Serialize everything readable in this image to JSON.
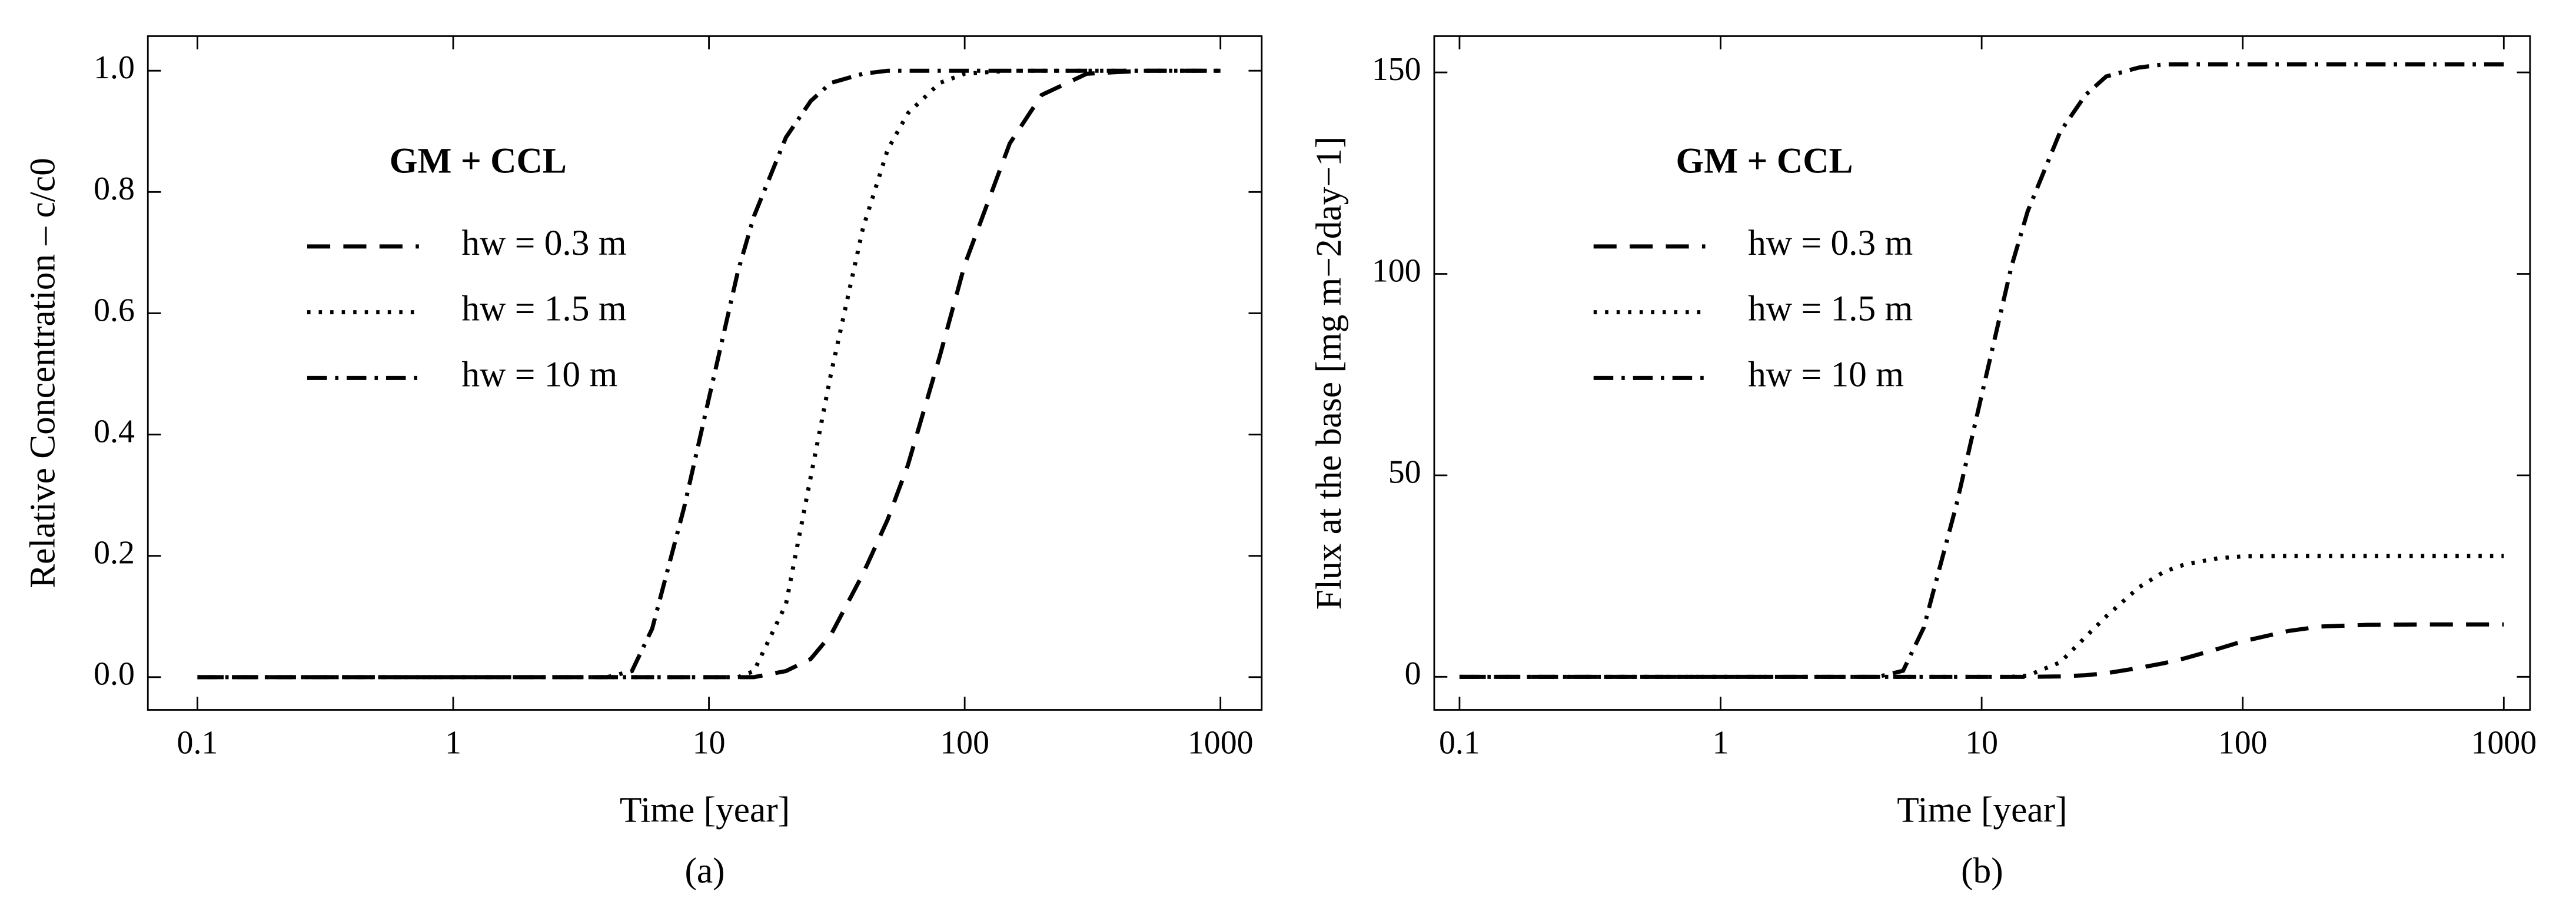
{
  "chart_data": [
    {
      "type": "line",
      "panel_label": "(a)",
      "xlabel": "Time [year]",
      "ylabel": "Relative Concentration – c/c0",
      "annotation": "GM + CCL",
      "log_x": true,
      "legend_position": "upper left",
      "xlim": [
        0.064,
        1450
      ],
      "xticks": [
        0.1,
        1,
        10,
        100,
        1000
      ],
      "ylim": [
        -0.054,
        1.057
      ],
      "yticks": [
        {
          "value": 0,
          "label": "0.0"
        },
        0.2,
        0.4,
        0.6,
        0.8,
        {
          "value": 1,
          "label": "1.0"
        }
      ],
      "x": [
        0.1,
        1,
        3,
        4,
        5,
        6,
        8,
        10,
        13,
        15,
        20,
        25,
        30,
        40,
        50,
        60,
        80,
        100,
        150,
        200,
        300,
        500,
        1000
      ],
      "series": [
        {
          "name": "hw = 0.3 m",
          "color": "#000000",
          "linestyle": "dashed",
          "values": [
            0,
            0,
            0,
            0,
            0,
            0,
            0,
            0,
            0,
            0,
            0.01,
            0.03,
            0.07,
            0.17,
            0.26,
            0.35,
            0.53,
            0.68,
            0.88,
            0.96,
            0.995,
            1,
            1
          ]
        },
        {
          "name": "hw = 1.5 m",
          "color": "#000000",
          "linestyle": "dotted",
          "values": [
            0,
            0,
            0,
            0,
            0,
            0,
            0,
            0,
            0,
            0.01,
            0.12,
            0.33,
            0.5,
            0.74,
            0.87,
            0.93,
            0.98,
            0.995,
            1,
            1,
            1,
            1,
            1
          ]
        },
        {
          "name": "hw = 10 m",
          "color": "#000000",
          "linestyle": "dashdot",
          "values": [
            0,
            0,
            0,
            0,
            0.01,
            0.08,
            0.28,
            0.46,
            0.67,
            0.76,
            0.89,
            0.95,
            0.98,
            0.995,
            1,
            1,
            1,
            1,
            1,
            1,
            1,
            1,
            1
          ]
        }
      ]
    },
    {
      "type": "line",
      "panel_label": "(b)",
      "xlabel": "Time [year]",
      "ylabel": "Flux at the base [mg m−2day−1]",
      "annotation": "GM + CCL",
      "log_x": true,
      "legend_position": "upper left",
      "xlim": [
        0.08,
        1260
      ],
      "xticks": [
        0.1,
        1,
        10,
        100,
        1000
      ],
      "ylim": [
        -8.2,
        159
      ],
      "yticks": [
        0,
        50,
        100,
        150
      ],
      "x": [
        0.1,
        1,
        3,
        4,
        5,
        6,
        8,
        10,
        13,
        15,
        20,
        25,
        30,
        40,
        50,
        60,
        80,
        100,
        150,
        200,
        300,
        500,
        1000
      ],
      "series": [
        {
          "name": "hw = 0.3 m",
          "color": "#000000",
          "linestyle": "dashed",
          "values": [
            0,
            0,
            0,
            0,
            0,
            0,
            0,
            0,
            0,
            0,
            0.1,
            0.4,
            0.9,
            2.2,
            3.4,
            4.6,
            6.9,
            8.8,
            11.4,
            12.5,
            12.9,
            13,
            13
          ]
        },
        {
          "name": "hw = 1.5 m",
          "color": "#000000",
          "linestyle": "dotted",
          "values": [
            0,
            0,
            0,
            0,
            0,
            0,
            0,
            0,
            0,
            0.3,
            3.6,
            9.9,
            15,
            22.2,
            26.1,
            27.9,
            29.4,
            29.9,
            30,
            30,
            30,
            30,
            30
          ]
        },
        {
          "name": "hw = 10 m",
          "color": "#000000",
          "linestyle": "dashdot",
          "values": [
            0,
            0,
            0,
            0,
            1.5,
            12.2,
            42.6,
            69.9,
            101.8,
            115.5,
            135.3,
            144.4,
            149,
            151.2,
            152,
            152,
            152,
            152,
            152,
            152,
            152,
            152,
            152
          ]
        }
      ]
    }
  ]
}
